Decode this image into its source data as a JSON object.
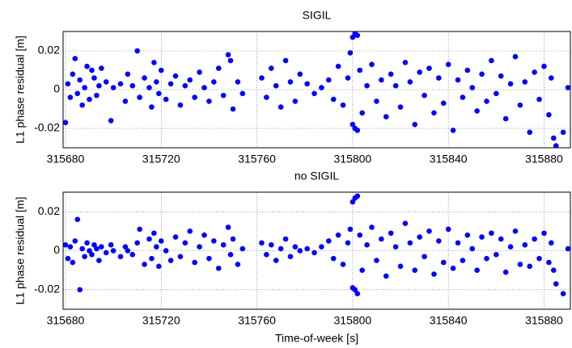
{
  "chart_data": [
    {
      "type": "scatter",
      "title": "SIGIL",
      "ylabel": "L1 phase residual [m]",
      "color": "#0000ff",
      "grid": true,
      "xlim": [
        315679,
        315891
      ],
      "xticks": [
        315680,
        315720,
        315760,
        315800,
        315840,
        315880
      ],
      "ylim": [
        -0.03,
        0.03
      ],
      "yticks": [
        -0.02,
        0,
        0.02
      ],
      "x": [
        315680,
        315681,
        315682,
        315683,
        315684,
        315685,
        315686,
        315687,
        315688,
        315689,
        315690,
        315691,
        315692,
        315693,
        315694,
        315695,
        315697,
        315699,
        315700,
        315703,
        315705,
        315706,
        315708,
        315710,
        315711,
        315713,
        315715,
        315716,
        315717,
        315718,
        315719,
        315720,
        315722,
        315724,
        315726,
        315728,
        315730,
        315732,
        315734,
        315736,
        315738,
        315740,
        315742,
        315744,
        315746,
        315748,
        315749,
        315750,
        315752,
        315754,
        315762,
        315764,
        315766,
        315768,
        315770,
        315772,
        315774,
        315776,
        315778,
        315781,
        315784,
        315787,
        315790,
        315792,
        315794,
        315796,
        315798,
        315799,
        315800,
        315800,
        315801,
        315801,
        315802,
        315802,
        315803,
        315804,
        315806,
        315808,
        315810,
        315812,
        315814,
        315816,
        315818,
        315820,
        315822,
        315824,
        315826,
        315828,
        315830,
        315832,
        315834,
        315836,
        315838,
        315840,
        315842,
        315844,
        315846,
        315848,
        315850,
        315852,
        315854,
        315856,
        315858,
        315860,
        315862,
        315864,
        315866,
        315868,
        315870,
        315872,
        315874,
        315876,
        315878,
        315880,
        315882,
        315883,
        315884,
        315885,
        315888,
        315890
      ],
      "values": [
        -0.017,
        0.003,
        -0.004,
        0.008,
        0.016,
        -0.002,
        0.005,
        -0.008,
        0.001,
        0.012,
        -0.005,
        0.01,
        0.006,
        -0.003,
        0.002,
        0.011,
        0.004,
        -0.016,
        0.001,
        0.003,
        -0.006,
        0.008,
        0.002,
        0.02,
        -0.004,
        0.006,
        0.001,
        -0.009,
        0.014,
        0.004,
        -0.002,
        0.01,
        -0.005,
        0.003,
        0.007,
        -0.008,
        0.002,
        0.005,
        -0.004,
        0.009,
        0.001,
        -0.006,
        0.004,
        0.011,
        -0.003,
        0.018,
        0.015,
        -0.01,
        0.004,
        -0.002,
        0.006,
        -0.004,
        0.011,
        0.002,
        -0.009,
        0.015,
        0.004,
        -0.006,
        0.008,
        0.003,
        -0.002,
        0.001,
        0.005,
        -0.005,
        0.012,
        -0.008,
        0.006,
        0.019,
        0.027,
        -0.018,
        0.029,
        -0.02,
        0.028,
        -0.021,
        0.01,
        -0.012,
        0.002,
        0.013,
        -0.006,
        0.005,
        -0.014,
        0.008,
        0.002,
        -0.009,
        0.014,
        0.004,
        -0.018,
        0.009,
        -0.003,
        0.011,
        -0.012,
        0.006,
        -0.007,
        0.013,
        -0.021,
        0.005,
        -0.004,
        0.01,
        0.001,
        -0.011,
        0.008,
        -0.006,
        0.015,
        -0.002,
        0.007,
        -0.015,
        0.003,
        0.017,
        -0.008,
        0.004,
        -0.022,
        0.009,
        -0.005,
        0.012,
        -0.013,
        0.006,
        -0.025,
        -0.029,
        -0.022,
        0.001
      ]
    },
    {
      "type": "scatter",
      "title": "no SIGIL",
      "ylabel": "L1 phase residual [m]",
      "xlabel": "Time-of-week [s]",
      "color": "#0000ff",
      "grid": true,
      "xlim": [
        315679,
        315891
      ],
      "xticks": [
        315680,
        315720,
        315760,
        315800,
        315840,
        315880
      ],
      "ylim": [
        -0.03,
        0.03
      ],
      "yticks": [
        -0.02,
        0,
        0.02
      ],
      "x": [
        315680,
        315681,
        315682,
        315683,
        315684,
        315685,
        315686,
        315687,
        315688,
        315689,
        315690,
        315691,
        315692,
        315693,
        315694,
        315695,
        315697,
        315699,
        315700,
        315703,
        315705,
        315706,
        315708,
        315710,
        315711,
        315713,
        315715,
        315716,
        315717,
        315718,
        315719,
        315720,
        315722,
        315724,
        315726,
        315728,
        315730,
        315732,
        315734,
        315736,
        315738,
        315740,
        315742,
        315744,
        315746,
        315748,
        315749,
        315750,
        315752,
        315754,
        315762,
        315764,
        315766,
        315768,
        315770,
        315772,
        315774,
        315776,
        315778,
        315781,
        315784,
        315787,
        315790,
        315792,
        315794,
        315796,
        315798,
        315799,
        315800,
        315800,
        315801,
        315801,
        315802,
        315802,
        315803,
        315804,
        315806,
        315808,
        315810,
        315812,
        315814,
        315816,
        315818,
        315820,
        315822,
        315824,
        315826,
        315828,
        315830,
        315832,
        315834,
        315836,
        315838,
        315840,
        315842,
        315844,
        315846,
        315848,
        315850,
        315852,
        315854,
        315856,
        315858,
        315860,
        315862,
        315864,
        315866,
        315868,
        315870,
        315872,
        315874,
        315876,
        315878,
        315880,
        315882,
        315883,
        315884,
        315885,
        315888,
        315890
      ],
      "values": [
        0.003,
        -0.004,
        0.002,
        -0.006,
        0.005,
        0.016,
        -0.02,
        0.001,
        -0.003,
        0.004,
        0.0,
        -0.002,
        0.003,
        0.001,
        -0.005,
        0.002,
        -0.001,
        0.003,
        0.0,
        -0.003,
        0.002,
        0.0,
        -0.002,
        0.004,
        0.011,
        -0.007,
        0.006,
        -0.004,
        0.009,
        0.002,
        -0.008,
        0.005,
        0.0,
        -0.005,
        0.007,
        -0.003,
        0.004,
        0.01,
        -0.006,
        0.002,
        0.008,
        -0.004,
        0.005,
        -0.009,
        0.003,
        0.012,
        -0.002,
        0.006,
        -0.007,
        0.001,
        0.004,
        -0.002,
        0.003,
        -0.005,
        0.001,
        0.006,
        -0.003,
        0.002,
        0.0,
        0.001,
        -0.001,
        0.002,
        0.005,
        -0.004,
        0.008,
        -0.007,
        0.004,
        0.011,
        0.025,
        -0.019,
        0.027,
        -0.02,
        0.028,
        -0.022,
        0.008,
        -0.01,
        0.003,
        0.012,
        -0.005,
        0.006,
        -0.013,
        0.009,
        0.002,
        -0.008,
        0.014,
        0.004,
        -0.01,
        0.007,
        -0.003,
        0.01,
        -0.012,
        0.005,
        -0.006,
        0.011,
        -0.009,
        0.004,
        -0.005,
        0.008,
        0.001,
        -0.01,
        0.007,
        -0.004,
        0.009,
        -0.002,
        0.006,
        -0.011,
        0.002,
        0.01,
        -0.007,
        0.003,
        -0.008,
        0.006,
        -0.004,
        0.009,
        -0.006,
        0.004,
        -0.01,
        -0.017,
        -0.022,
        0.001
      ]
    }
  ]
}
